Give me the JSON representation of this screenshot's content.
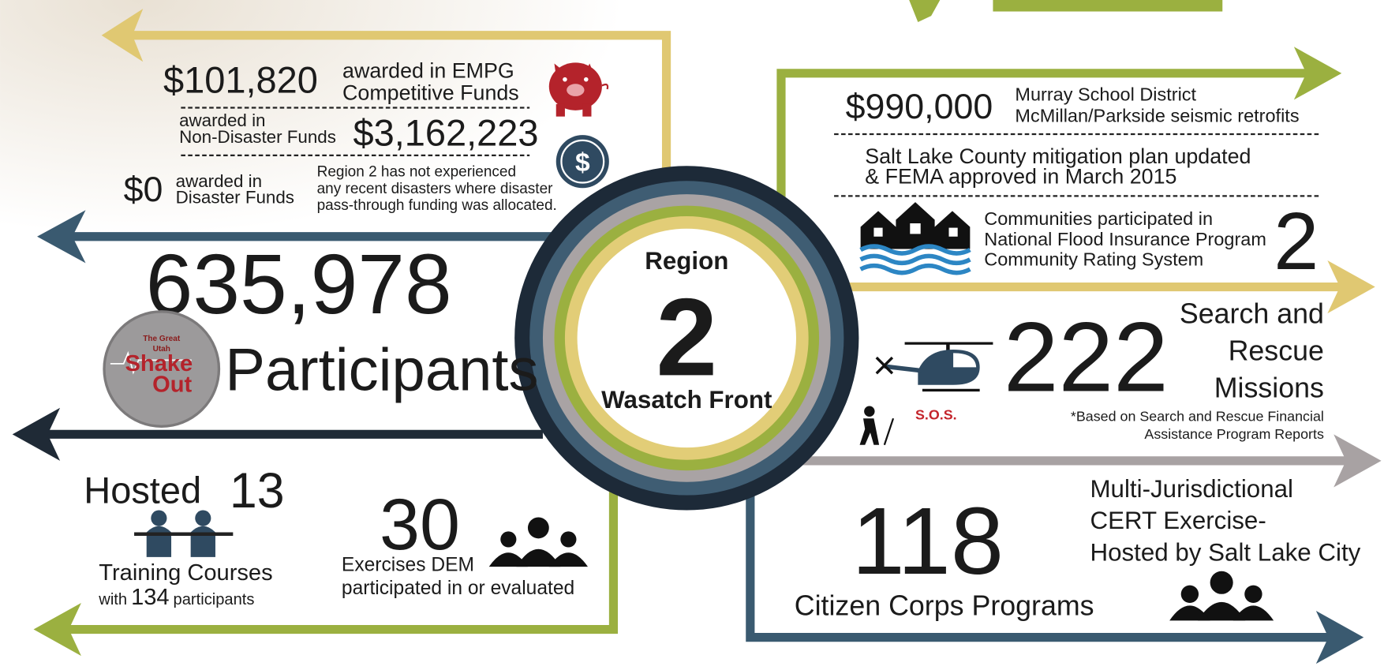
{
  "center": {
    "line1": "Region",
    "number": "2",
    "line2": "Wasatch Front"
  },
  "funding": {
    "empg_amount": "$101,820",
    "empg_label_1": "awarded in EMPG",
    "empg_label_2": "Competitive Funds",
    "nondisaster_label_1": "awarded in",
    "nondisaster_label_2": "Non-Disaster Funds",
    "nondisaster_amount": "$3,162,223",
    "disaster_amount": "$0",
    "disaster_label_1": "awarded in",
    "disaster_label_2": "Disaster Funds",
    "disaster_note_1": "Region 2 has not experienced",
    "disaster_note_2": "any recent disasters where disaster",
    "disaster_note_3": "pass-through funding was allocated.",
    "dollar_icon": "$"
  },
  "shakeout": {
    "number": "635,978",
    "label": "Participants",
    "logo_1": "The Great",
    "logo_2": "Utah",
    "logo_3": "Shake",
    "logo_4": "Out"
  },
  "training": {
    "hosted": "Hosted",
    "count": "13",
    "label": "Training Courses",
    "with": "with",
    "participants_count": "134",
    "participants": "participants"
  },
  "exercises": {
    "count": "30",
    "label_1": "Exercises DEM",
    "label_2": "participated in or evaluated"
  },
  "retrofit": {
    "amount": "$990,000",
    "label_1": "Murray School District",
    "label_2": "McMillan/Parkside seismic retrofits"
  },
  "plan": {
    "line1": "Salt Lake County mitigation plan updated",
    "line2": "& FEMA approved in March 2015"
  },
  "nfip": {
    "line1": "Communities participated in",
    "line2": "National Flood Insurance Program",
    "line3": "Community Rating System",
    "count": "2"
  },
  "sar": {
    "count": "222",
    "label_1": "Search and",
    "label_2": "Rescue",
    "label_3": "Missions",
    "note_1": "*Based on Search and Rescue Financial",
    "note_2": "Assistance Program Reports",
    "sos": "S.O.S."
  },
  "cert": {
    "count": "118",
    "label": "Citizen Corps Programs",
    "line1": "Multi-Jurisdictional",
    "line2": "CERT Exercise-",
    "line3": "Hosted by Salt Lake City"
  }
}
